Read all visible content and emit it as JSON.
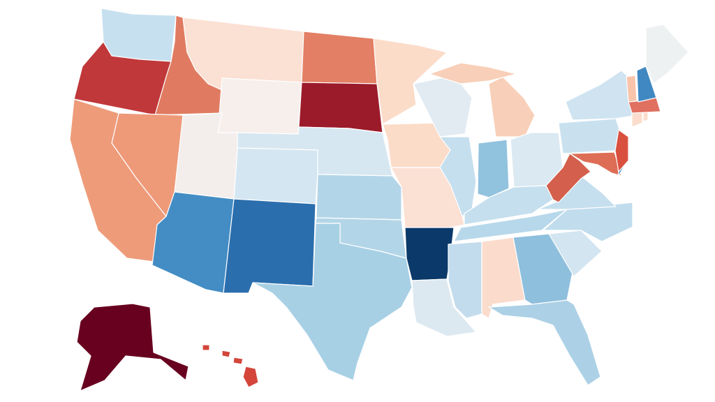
{
  "map": {
    "type": "choropleth",
    "region": "United States",
    "background": "#ffffff",
    "border_color": "#ffffff",
    "state_colors": {
      "WA": "#c6e0ef",
      "OR": "#c0383a",
      "ID": "#e07b61",
      "MT": "#fbe0d4",
      "WY": "#f6efec",
      "ND": "#e37f64",
      "SD": "#9b1b2a",
      "NE": "#d7e7f1",
      "CO": "#d4e6f1",
      "UT": "#f3eeec",
      "NV": "#ee9a79",
      "CA": "#ee9b7a",
      "AZ": "#438dc4",
      "NM": "#2b6ead",
      "TX": "#a8d0e5",
      "OK": "#b3d5e8",
      "KS": "#b3d5e8",
      "MN": "#fbdcc9",
      "IA": "#fbdcc9",
      "MO": "#fbe0d4",
      "AR": "#0b3a6a",
      "LA": "#dde9f1",
      "WI": "#e2ebf2",
      "MI": "#f8cfb8",
      "IL": "#c5dfee",
      "IN": "#91c2de",
      "OH": "#dbe9f2",
      "KY": "#c5dfee",
      "TN": "#b7d8ea",
      "MS": "#c2dced",
      "AL": "#fbdccc",
      "GA": "#8ebfdd",
      "FL": "#acd1e6",
      "SC": "#d3e5f0",
      "NC": "#c1dced",
      "VA": "#c5dfee",
      "WV": "#d45f4c",
      "PA": "#c9e1ef",
      "NY": "#cfe3f0",
      "MD": "#de6d55",
      "DE": "#5b9fd0",
      "NJ": "#d9503f",
      "CT": "#fbdccc",
      "RI": "#fbdccc",
      "MA": "#e07060",
      "VT": "#f8c4ab",
      "NH": "#3f88c1",
      "ME": "#eef1f2",
      "AK": "#68001f",
      "HI": "#d4453a"
    }
  }
}
